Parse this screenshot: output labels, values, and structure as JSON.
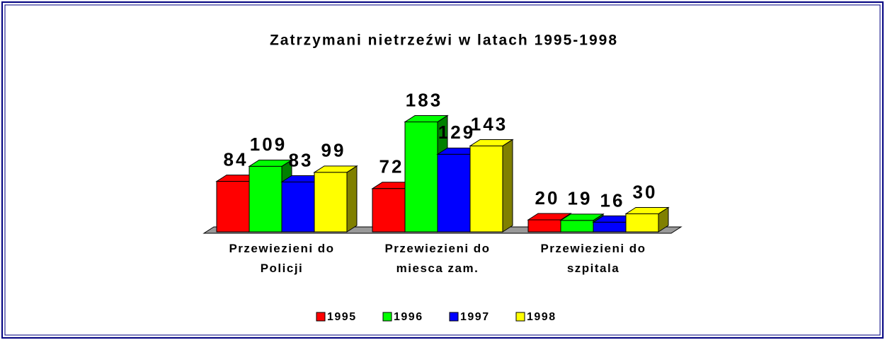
{
  "chart_data": {
    "type": "bar3d",
    "title": "Zatrzymani nietrzeźwi w latach 1995-1998",
    "categories": [
      "Przewiezieni do\nPolicji",
      "Przewiezieni do\nmiesca zam.",
      "Przewiezieni do\nszpitala"
    ],
    "series": [
      {
        "name": "1995",
        "color": "#ff0000",
        "values": [
          84,
          72,
          20
        ]
      },
      {
        "name": "1996",
        "color": "#00ff00",
        "values": [
          109,
          183,
          19
        ]
      },
      {
        "name": "1997",
        "color": "#0000ff",
        "values": [
          83,
          129,
          16
        ]
      },
      {
        "name": "1998",
        "color": "#ffff00",
        "values": [
          99,
          143,
          30
        ]
      }
    ],
    "ylim": [
      0,
      200
    ],
    "legend": "bottom"
  }
}
